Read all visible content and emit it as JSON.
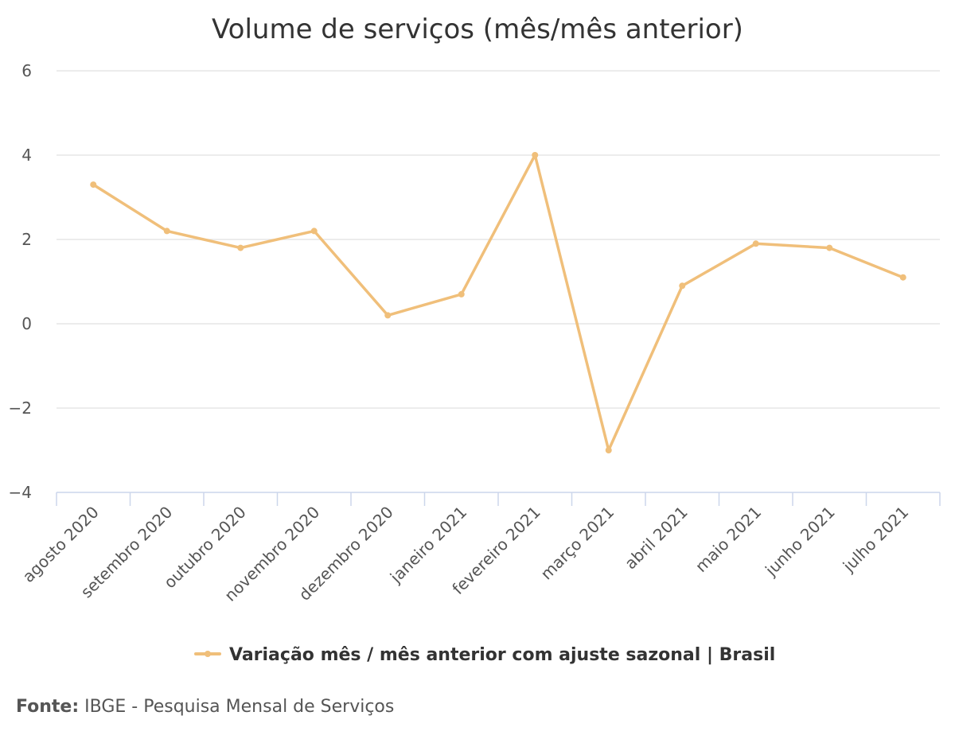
{
  "chart_data": {
    "type": "line",
    "title": "Volume de serviços (mês/mês anterior)",
    "xlabel": "",
    "ylabel": "",
    "categories": [
      "agosto 2020",
      "setembro 2020",
      "outubro 2020",
      "novembro 2020",
      "dezembro 2020",
      "janeiro 2021",
      "fevereiro 2021",
      "março 2021",
      "abril 2021",
      "maio 2021",
      "junho 2021",
      "julho 2021"
    ],
    "series": [
      {
        "name": "Variação mês / mês anterior com ajuste sazonal | Brasil",
        "color": "#f0bf7a",
        "values": [
          3.3,
          2.2,
          1.8,
          2.2,
          0.2,
          0.7,
          4.0,
          -3.0,
          0.9,
          1.9,
          1.8,
          1.1
        ]
      }
    ],
    "ylim": [
      -4,
      6
    ],
    "yticks": [
      "6",
      "4",
      "2",
      "0",
      "−2",
      "−4"
    ],
    "grid": true,
    "legend": "bottom-center"
  },
  "source": {
    "label": "Fonte:",
    "text": "IBGE - Pesquisa Mensal de Serviços"
  }
}
